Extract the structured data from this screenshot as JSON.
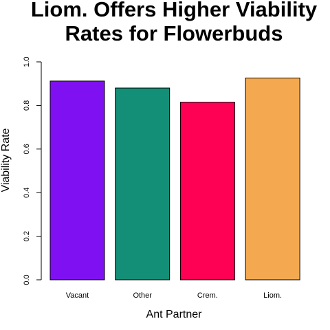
{
  "chart_data": {
    "type": "bar",
    "title_lines": [
      "Liom. Offers Higher Viability",
      "Rates for Flowerbuds"
    ],
    "xlabel": "Ant Partner",
    "ylabel": "Viability Rate",
    "categories": [
      "Vacant",
      "Other",
      "Crem.",
      "Liom."
    ],
    "values": [
      0.912,
      0.88,
      0.815,
      0.926
    ],
    "colors": [
      "#7f10f2",
      "#148f77",
      "#fe0054",
      "#f4a950"
    ],
    "ylim": [
      0,
      1
    ],
    "yticks": [
      "0.0",
      "0.2",
      "0.4",
      "0.6",
      "0.8",
      "1.0"
    ],
    "grid": false
  }
}
